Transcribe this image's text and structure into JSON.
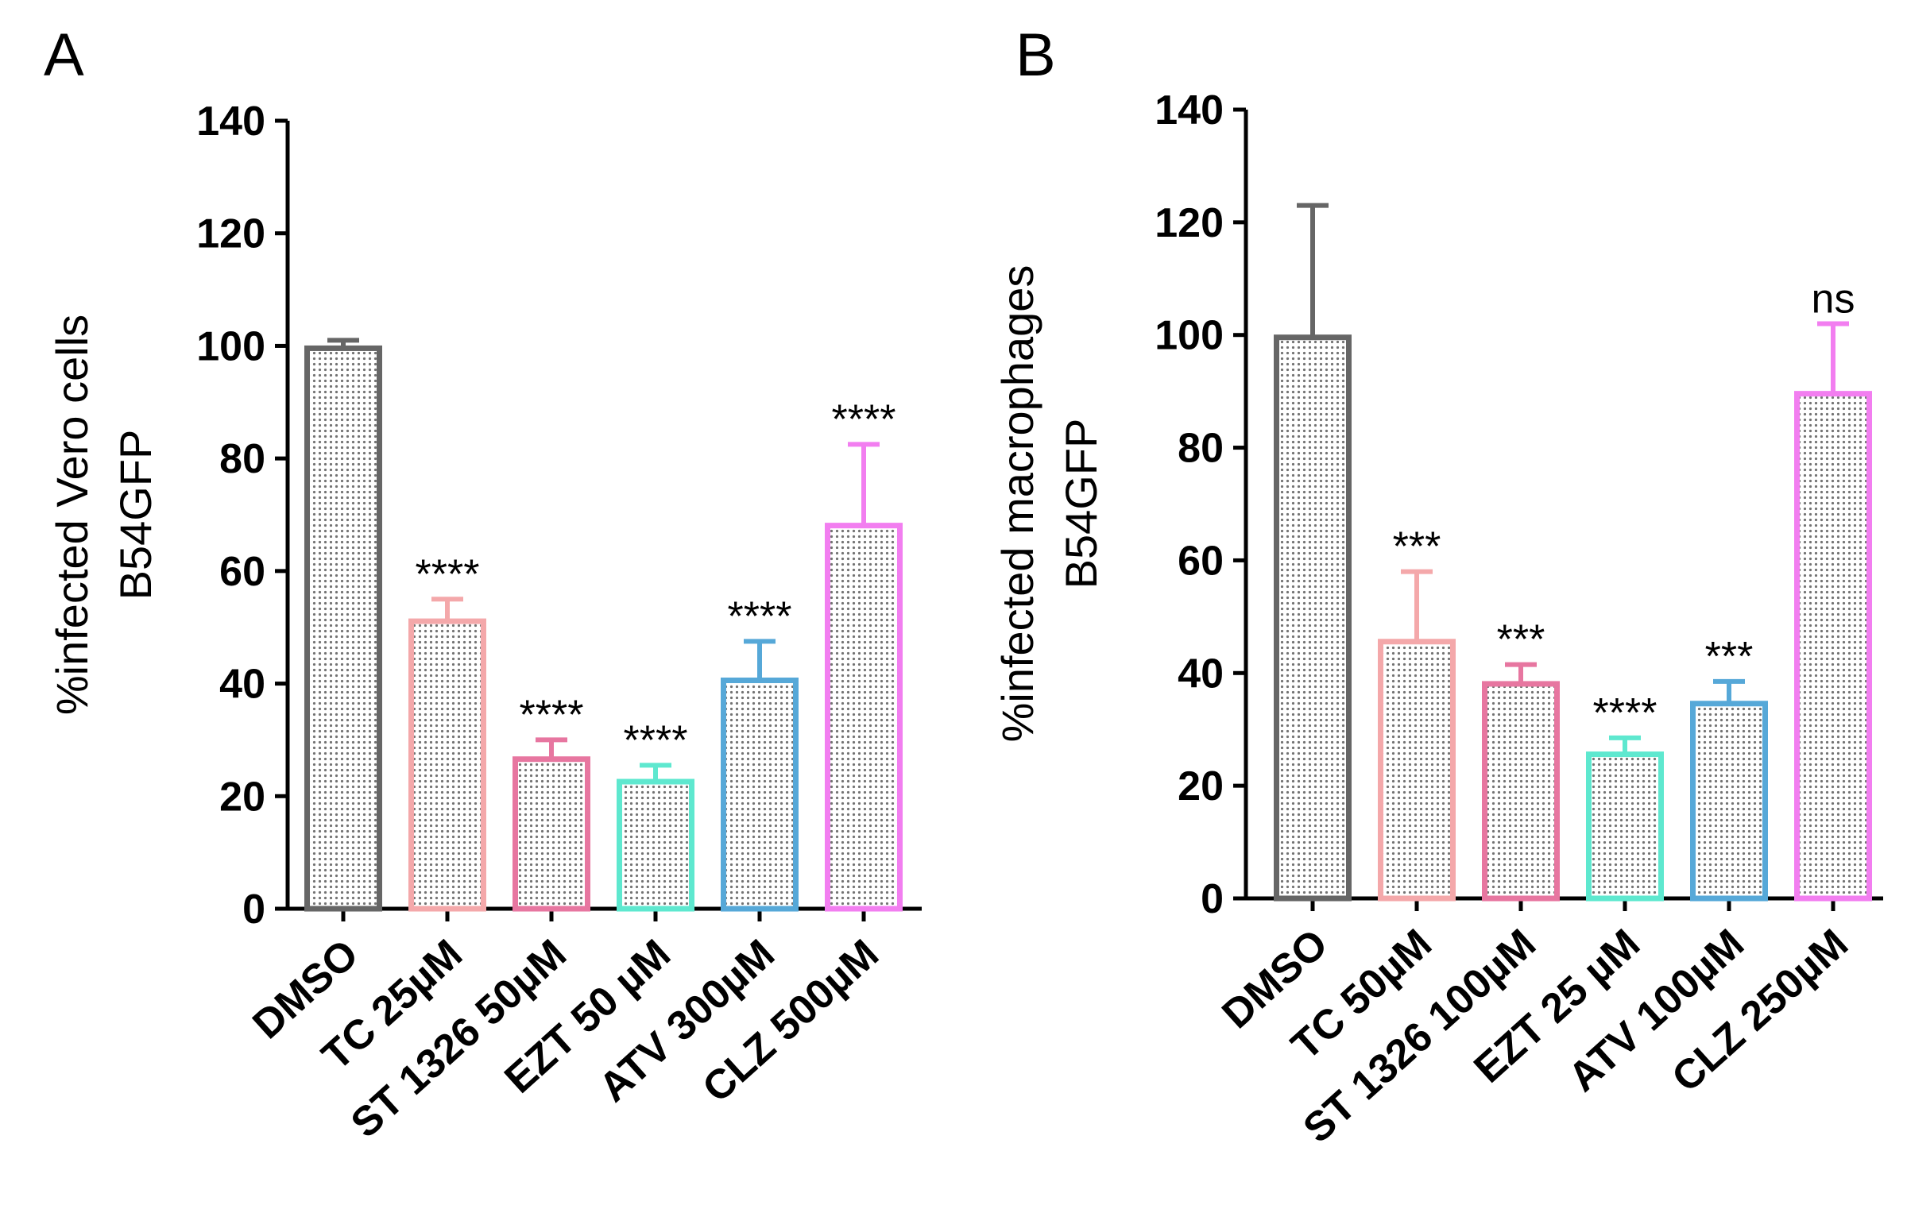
{
  "chart_data": [
    {
      "type": "bar",
      "panel": "A",
      "ylabel_line1": "%infected Vero cells",
      "ylabel_line2": "B54GFP",
      "ylim": [
        0,
        140
      ],
      "yticks": [
        "0",
        "20",
        "40",
        "60",
        "80",
        "100",
        "120",
        "140"
      ],
      "categories": [
        "DMSO",
        "TC 25µM",
        "ST 1326 50µM",
        "EZT 50 µM",
        "ATV 300µM",
        "CLZ 500µM"
      ],
      "values": [
        100,
        51.5,
        27,
        23,
        41,
        68.5
      ],
      "errors": [
        1,
        3.5,
        3,
        2.5,
        6.5,
        14
      ],
      "significance": [
        "",
        "****",
        "****",
        "****",
        "****",
        "****"
      ],
      "colors": [
        "#666666",
        "#f4a8aa",
        "#e776a0",
        "#5ee8cf",
        "#56a8d8",
        "#f27ef0"
      ]
    },
    {
      "type": "bar",
      "panel": "B",
      "ylabel_line1": "%infected macrophages",
      "ylabel_line2": "B54GFP",
      "ylim": [
        0,
        140
      ],
      "yticks": [
        "0",
        "20",
        "40",
        "60",
        "80",
        "100",
        "120",
        "140"
      ],
      "categories": [
        "DMSO",
        "TC 50µM",
        "ST 1326 100µM",
        "EZT 25 µM",
        "ATV 100µM",
        "CLZ 250µM"
      ],
      "values": [
        100,
        46,
        38.5,
        26,
        35,
        90
      ],
      "errors": [
        23,
        12,
        3,
        2.5,
        3.5,
        12
      ],
      "significance": [
        "",
        "***",
        "***",
        "****",
        "***",
        "ns"
      ],
      "colors": [
        "#666666",
        "#f4a8aa",
        "#e776a0",
        "#5ee8cf",
        "#56a8d8",
        "#f27ef0"
      ]
    }
  ]
}
